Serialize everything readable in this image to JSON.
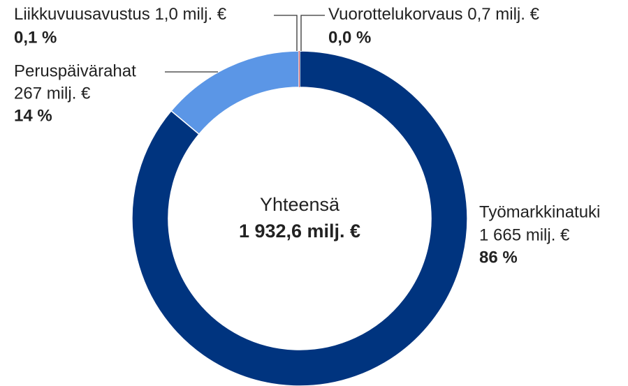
{
  "chart_data": {
    "type": "donut",
    "categories": [
      "Työmarkkinatuki",
      "Peruspäivärahat",
      "Liikkuvuusavustus",
      "Vuorottelukorvaus"
    ],
    "values": [
      1665,
      267,
      1.0,
      0.7
    ],
    "value_labels": [
      "1 665 milj. €",
      "267 milj. €",
      "1,0 milj. €",
      "0,7 milj. €"
    ],
    "percentages": [
      86,
      14,
      0.1,
      0.0
    ],
    "percentage_labels": [
      "86 %",
      "14 %",
      "0,1 %",
      "0,0 %"
    ],
    "colors": [
      "#00347f",
      "#5b96e6",
      "#c0392b",
      "#e87fa0"
    ],
    "center_label": "Yhteensä",
    "center_value": "1 932,6 milj. €"
  }
}
